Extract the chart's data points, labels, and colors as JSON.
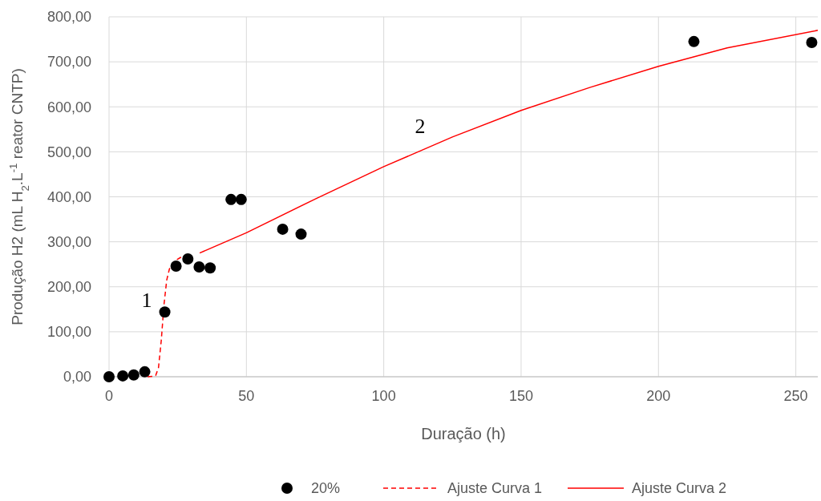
{
  "chart_data": {
    "type": "scatter",
    "xlabel": "Duração (h)",
    "ylabel": "Produção H2 (mL H$_{2}$.L$^{-1}$ reator CNTP)",
    "xlim": [
      0,
      258
    ],
    "xticks": [
      0,
      50,
      100,
      150,
      200,
      250
    ],
    "ylim": [
      0,
      800
    ],
    "yticks": [
      {
        "value": 0,
        "label": "0,00"
      },
      {
        "value": 100,
        "label": "100,00"
      },
      {
        "value": 200,
        "label": "200,00"
      },
      {
        "value": 300,
        "label": "300,00"
      },
      {
        "value": 400,
        "label": "400,00"
      },
      {
        "value": 500,
        "label": "500,00"
      },
      {
        "value": 600,
        "label": "600,00"
      },
      {
        "value": 700,
        "label": "700,00"
      },
      {
        "value": 800,
        "label": "800,00"
      }
    ],
    "grid": true,
    "legend": "bottom",
    "series": [
      {
        "name": "20%",
        "color": "#000000",
        "marker": "circle",
        "x": [
          0,
          5,
          9,
          13,
          20.3,
          24.4,
          28.7,
          32.8,
          36.8,
          44.4,
          48.1,
          63.2,
          69.9,
          212.9,
          255.8
        ],
        "values": [
          0,
          2,
          4,
          11,
          144,
          246,
          262,
          244,
          242,
          394,
          394,
          328,
          317,
          745,
          743
        ]
      },
      {
        "name": "Ajuste Curva 1",
        "type": "line",
        "color": "#ff0000",
        "line_style": "dashed",
        "x": [
          14,
          16,
          17,
          18,
          19,
          20,
          21,
          22,
          24,
          26,
          28
        ],
        "values": [
          0,
          1,
          3,
          20,
          80,
          160,
          215,
          240,
          258,
          265,
          270
        ]
      },
      {
        "name": "Ajuste Curva 2",
        "type": "line",
        "color": "#ff0000",
        "line_style": "solid",
        "x": [
          33,
          50,
          75,
          100,
          125,
          150,
          175,
          200,
          225,
          258
        ],
        "values": [
          275,
          320,
          395,
          467,
          533,
          592,
          643,
          690,
          731,
          770
        ]
      }
    ],
    "annotations": [
      "1",
      "2"
    ]
  }
}
